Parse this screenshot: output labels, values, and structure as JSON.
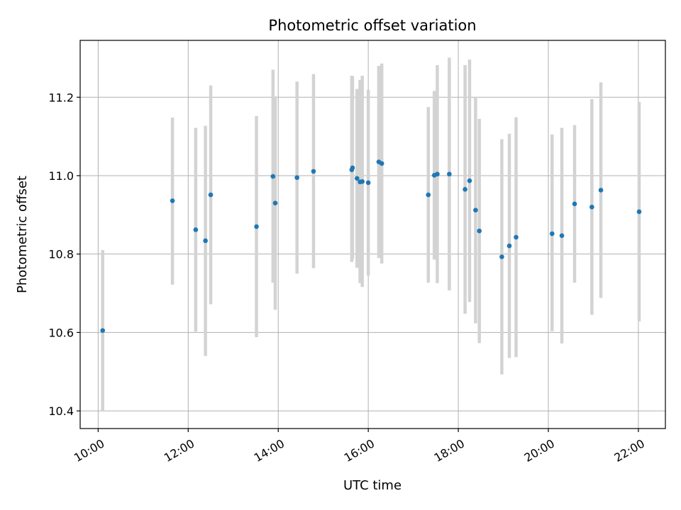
{
  "chart_data": {
    "type": "scatter",
    "title": "Photometric offset variation",
    "xlabel": "UTC time",
    "ylabel": "Photometric offset",
    "x_unit": "UTC time (HH:MM)",
    "xlim": [
      "09:36",
      "22:36"
    ],
    "ylim": [
      10.355,
      11.345
    ],
    "x_ticks": [
      "10:00",
      "12:00",
      "14:00",
      "16:00",
      "18:00",
      "20:00",
      "22:00"
    ],
    "y_ticks": [
      "10.4",
      "10.6",
      "10.8",
      "11.0",
      "11.2"
    ],
    "grid": true,
    "colors": {
      "point": "#1f77b4",
      "errorbar": "#d3d3d3",
      "grid": "#b0b0b0"
    },
    "points": [
      {
        "x": "10:06",
        "y": 10.605,
        "lo": 10.4,
        "hi": 10.81
      },
      {
        "x": "11:39",
        "y": 10.936,
        "lo": 10.722,
        "hi": 11.148
      },
      {
        "x": "12:10",
        "y": 10.862,
        "lo": 10.602,
        "hi": 11.122
      },
      {
        "x": "12:23",
        "y": 10.834,
        "lo": 10.54,
        "hi": 11.127
      },
      {
        "x": "12:30",
        "y": 10.951,
        "lo": 10.672,
        "hi": 11.23
      },
      {
        "x": "13:31",
        "y": 10.87,
        "lo": 10.588,
        "hi": 11.152
      },
      {
        "x": "13:53",
        "y": 10.998,
        "lo": 10.727,
        "hi": 11.27
      },
      {
        "x": "13:56",
        "y": 10.93,
        "lo": 10.658,
        "hi": 11.202
      },
      {
        "x": "14:25",
        "y": 10.995,
        "lo": 10.75,
        "hi": 11.24
      },
      {
        "x": "14:47",
        "y": 11.011,
        "lo": 10.764,
        "hi": 11.259
      },
      {
        "x": "15:38",
        "y": 11.015,
        "lo": 10.78,
        "hi": 11.255
      },
      {
        "x": "15:39",
        "y": 11.02,
        "lo": 10.787,
        "hi": 11.253
      },
      {
        "x": "15:45",
        "y": 10.993,
        "lo": 10.765,
        "hi": 11.221
      },
      {
        "x": "15:49",
        "y": 10.984,
        "lo": 10.726,
        "hi": 11.244
      },
      {
        "x": "15:52",
        "y": 10.985,
        "lo": 10.716,
        "hi": 11.255
      },
      {
        "x": "16:00",
        "y": 10.982,
        "lo": 10.745,
        "hi": 11.219
      },
      {
        "x": "16:14",
        "y": 11.035,
        "lo": 10.79,
        "hi": 11.28
      },
      {
        "x": "16:18",
        "y": 11.031,
        "lo": 10.776,
        "hi": 11.286
      },
      {
        "x": "17:20",
        "y": 10.951,
        "lo": 10.727,
        "hi": 11.175
      },
      {
        "x": "17:28",
        "y": 11.001,
        "lo": 10.786,
        "hi": 11.216
      },
      {
        "x": "17:32",
        "y": 11.004,
        "lo": 10.726,
        "hi": 11.282
      },
      {
        "x": "17:48",
        "y": 11.004,
        "lo": 10.707,
        "hi": 11.301
      },
      {
        "x": "18:09",
        "y": 10.965,
        "lo": 10.648,
        "hi": 11.282
      },
      {
        "x": "18:15",
        "y": 10.987,
        "lo": 10.678,
        "hi": 11.296
      },
      {
        "x": "18:23",
        "y": 10.912,
        "lo": 10.623,
        "hi": 11.201
      },
      {
        "x": "18:28",
        "y": 10.859,
        "lo": 10.573,
        "hi": 11.145
      },
      {
        "x": "18:58",
        "y": 10.793,
        "lo": 10.493,
        "hi": 11.093
      },
      {
        "x": "19:08",
        "y": 10.821,
        "lo": 10.535,
        "hi": 11.107
      },
      {
        "x": "19:17",
        "y": 10.843,
        "lo": 10.537,
        "hi": 11.149
      },
      {
        "x": "20:05",
        "y": 10.852,
        "lo": 10.603,
        "hi": 11.105
      },
      {
        "x": "20:18",
        "y": 10.847,
        "lo": 10.572,
        "hi": 11.122
      },
      {
        "x": "20:35",
        "y": 10.928,
        "lo": 10.727,
        "hi": 11.129
      },
      {
        "x": "20:58",
        "y": 10.92,
        "lo": 10.645,
        "hi": 11.195
      },
      {
        "x": "21:10",
        "y": 10.963,
        "lo": 10.688,
        "hi": 11.238
      },
      {
        "x": "22:01",
        "y": 10.908,
        "lo": 10.628,
        "hi": 11.188
      }
    ]
  }
}
